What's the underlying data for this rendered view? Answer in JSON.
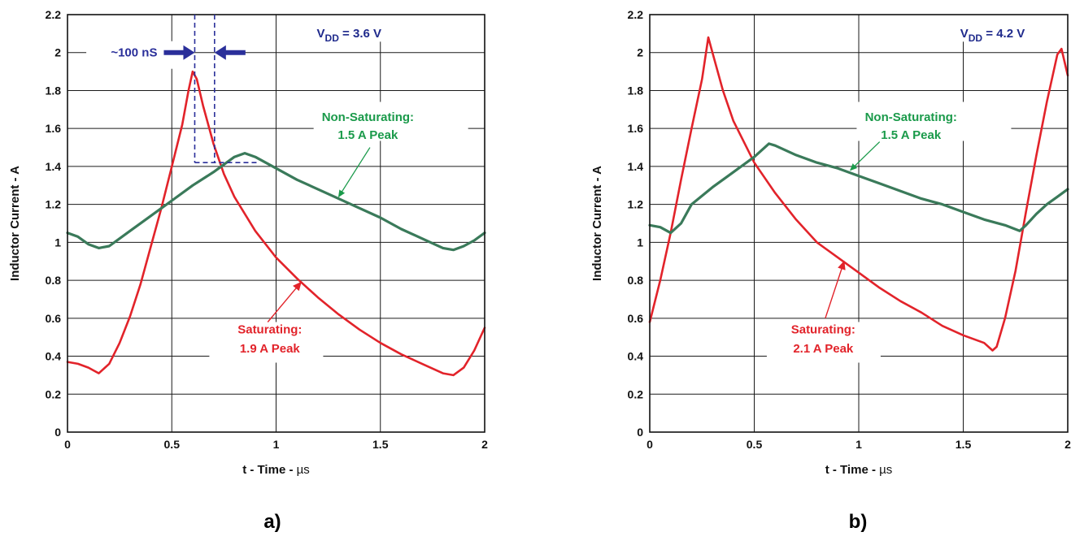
{
  "colors": {
    "saturating": "#e2232a",
    "non_saturating": "#3a7a5a",
    "vdd": "#1f2a8c",
    "sat_label": "#e2232a",
    "nonsat_label": "#1a9a4a",
    "dim": "#2a2f9a"
  },
  "chart_data": [
    {
      "type": "line",
      "panel_label": "a)",
      "xlabel_pre": "t - Time - ",
      "xlabel_unit": "µs",
      "ylabel": "Inductor Current - A",
      "xlim": [
        0,
        2
      ],
      "ylim": [
        0,
        2.2
      ],
      "x_ticks": [
        "0",
        "0.5",
        "1",
        "1.5",
        "2"
      ],
      "y_ticks": [
        "0",
        "0.2",
        "0.4",
        "0.6",
        "0.8",
        "1",
        "1.2",
        "1.4",
        "1.6",
        "1.8",
        "2",
        "2.2"
      ],
      "grid": true,
      "vdd": {
        "prefix": "V",
        "subscript": "DD",
        "suffix": " = 3.6 V"
      },
      "annotations": {
        "non_saturating": [
          "Non-Saturating:",
          "1.5 A Peak"
        ],
        "saturating": [
          "Saturating:",
          "1.9 A Peak"
        ],
        "dimension": "~100 nS"
      },
      "series": [
        {
          "key": "saturating",
          "points": [
            [
              0,
              0.37
            ],
            [
              0.05,
              0.36
            ],
            [
              0.1,
              0.34
            ],
            [
              0.15,
              0.31
            ],
            [
              0.2,
              0.36
            ],
            [
              0.25,
              0.47
            ],
            [
              0.3,
              0.61
            ],
            [
              0.35,
              0.78
            ],
            [
              0.4,
              0.98
            ],
            [
              0.45,
              1.18
            ],
            [
              0.5,
              1.4
            ],
            [
              0.55,
              1.62
            ],
            [
              0.58,
              1.8
            ],
            [
              0.6,
              1.9
            ],
            [
              0.62,
              1.86
            ],
            [
              0.65,
              1.72
            ],
            [
              0.7,
              1.52
            ],
            [
              0.75,
              1.36
            ],
            [
              0.8,
              1.24
            ],
            [
              0.9,
              1.06
            ],
            [
              1.0,
              0.92
            ],
            [
              1.1,
              0.81
            ],
            [
              1.2,
              0.71
            ],
            [
              1.3,
              0.62
            ],
            [
              1.4,
              0.54
            ],
            [
              1.5,
              0.47
            ],
            [
              1.6,
              0.41
            ],
            [
              1.7,
              0.36
            ],
            [
              1.8,
              0.31
            ],
            [
              1.85,
              0.3
            ],
            [
              1.9,
              0.34
            ],
            [
              1.95,
              0.43
            ],
            [
              2.0,
              0.55
            ]
          ]
        },
        {
          "key": "non_saturating",
          "points": [
            [
              0,
              1.05
            ],
            [
              0.05,
              1.03
            ],
            [
              0.1,
              0.99
            ],
            [
              0.15,
              0.97
            ],
            [
              0.2,
              0.98
            ],
            [
              0.3,
              1.06
            ],
            [
              0.4,
              1.14
            ],
            [
              0.5,
              1.22
            ],
            [
              0.6,
              1.3
            ],
            [
              0.7,
              1.37
            ],
            [
              0.8,
              1.45
            ],
            [
              0.85,
              1.47
            ],
            [
              0.9,
              1.45
            ],
            [
              1.0,
              1.39
            ],
            [
              1.1,
              1.33
            ],
            [
              1.2,
              1.28
            ],
            [
              1.3,
              1.23
            ],
            [
              1.4,
              1.18
            ],
            [
              1.5,
              1.13
            ],
            [
              1.6,
              1.07
            ],
            [
              1.7,
              1.02
            ],
            [
              1.8,
              0.97
            ],
            [
              1.85,
              0.96
            ],
            [
              1.9,
              0.98
            ],
            [
              1.95,
              1.01
            ],
            [
              2.0,
              1.05
            ]
          ]
        }
      ]
    },
    {
      "type": "line",
      "panel_label": "b)",
      "xlabel_pre": "t - Time - ",
      "xlabel_unit": "µs",
      "ylabel": "Inductor Current - A",
      "xlim": [
        0,
        2
      ],
      "ylim": [
        0,
        2.2
      ],
      "x_ticks": [
        "0",
        "0.5",
        "1",
        "1.5",
        "2"
      ],
      "y_ticks": [
        "0",
        "0.2",
        "0.4",
        "0.6",
        "0.8",
        "1",
        "1.2",
        "1.4",
        "1.6",
        "1.8",
        "2",
        "2.2"
      ],
      "grid": true,
      "vdd": {
        "prefix": "V",
        "subscript": "DD",
        "suffix": " = 4.2 V"
      },
      "annotations": {
        "non_saturating": [
          "Non-Saturating:",
          "1.5 A Peak"
        ],
        "saturating": [
          "Saturating:",
          "2.1 A Peak"
        ]
      },
      "series": [
        {
          "key": "saturating",
          "points": [
            [
              0,
              0.58
            ],
            [
              0.05,
              0.8
            ],
            [
              0.1,
              1.05
            ],
            [
              0.15,
              1.33
            ],
            [
              0.2,
              1.6
            ],
            [
              0.25,
              1.86
            ],
            [
              0.28,
              2.08
            ],
            [
              0.3,
              2.0
            ],
            [
              0.35,
              1.8
            ],
            [
              0.4,
              1.64
            ],
            [
              0.5,
              1.42
            ],
            [
              0.6,
              1.26
            ],
            [
              0.7,
              1.12
            ],
            [
              0.8,
              1.0
            ],
            [
              0.9,
              0.92
            ],
            [
              1.0,
              0.84
            ],
            [
              1.1,
              0.76
            ],
            [
              1.2,
              0.69
            ],
            [
              1.3,
              0.63
            ],
            [
              1.4,
              0.56
            ],
            [
              1.5,
              0.51
            ],
            [
              1.6,
              0.47
            ],
            [
              1.64,
              0.43
            ],
            [
              1.66,
              0.45
            ],
            [
              1.7,
              0.6
            ],
            [
              1.75,
              0.85
            ],
            [
              1.8,
              1.16
            ],
            [
              1.85,
              1.46
            ],
            [
              1.9,
              1.74
            ],
            [
              1.95,
              1.99
            ],
            [
              1.97,
              2.02
            ],
            [
              2.0,
              1.88
            ]
          ]
        },
        {
          "key": "non_saturating",
          "points": [
            [
              0,
              1.09
            ],
            [
              0.05,
              1.08
            ],
            [
              0.1,
              1.05
            ],
            [
              0.15,
              1.1
            ],
            [
              0.2,
              1.2
            ],
            [
              0.3,
              1.29
            ],
            [
              0.4,
              1.37
            ],
            [
              0.5,
              1.45
            ],
            [
              0.57,
              1.52
            ],
            [
              0.6,
              1.51
            ],
            [
              0.7,
              1.46
            ],
            [
              0.8,
              1.42
            ],
            [
              0.9,
              1.39
            ],
            [
              1.0,
              1.35
            ],
            [
              1.1,
              1.31
            ],
            [
              1.2,
              1.27
            ],
            [
              1.3,
              1.23
            ],
            [
              1.4,
              1.2
            ],
            [
              1.5,
              1.16
            ],
            [
              1.6,
              1.12
            ],
            [
              1.7,
              1.09
            ],
            [
              1.77,
              1.06
            ],
            [
              1.8,
              1.09
            ],
            [
              1.85,
              1.15
            ],
            [
              1.9,
              1.2
            ],
            [
              1.95,
              1.24
            ],
            [
              2.0,
              1.28
            ]
          ]
        }
      ]
    }
  ]
}
